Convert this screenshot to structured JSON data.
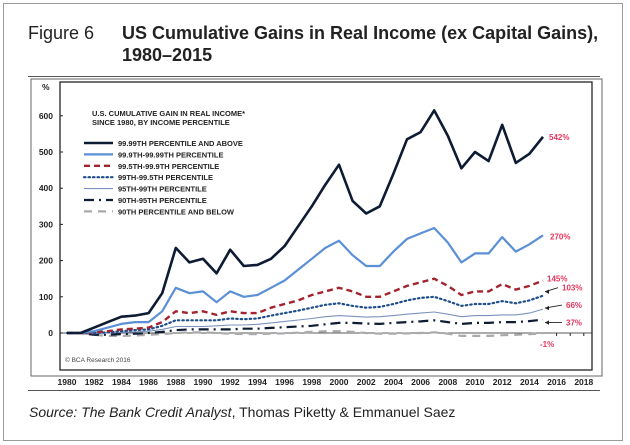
{
  "figure": {
    "label": "Figure 6",
    "title": "US Cumulative Gains in Real Income (ex Capital Gains), 1980–2015",
    "source_italic": "Source: The Bank Credit Analyst",
    "source_rest": ", Thomas Piketty & Emmanuel Saez"
  },
  "chart_data": {
    "type": "line",
    "title": "U.S. CUMULATIVE GAIN IN REAL INCOME* SINCE 1980, BY INCOME PERCENTILE",
    "title_lines": [
      "U.S. CUMULATIVE GAIN IN REAL INCOME*",
      "SINCE 1980, BY INCOME PERCENTILE"
    ],
    "ylabel": "%",
    "xlabel": "",
    "ylim": [
      -40,
      640
    ],
    "xlim": [
      1980,
      2018
    ],
    "yticks": [
      0,
      100,
      200,
      300,
      400,
      500,
      600
    ],
    "xticks": [
      1980,
      1982,
      1984,
      1986,
      1988,
      1990,
      1992,
      1994,
      1996,
      1998,
      2000,
      2002,
      2004,
      2006,
      2008,
      2010,
      2012,
      2014,
      2016,
      2018
    ],
    "grid": false,
    "legend_position": "top-left",
    "copyright": "© BCA Research 2016",
    "x": [
      1980,
      1981,
      1982,
      1983,
      1984,
      1985,
      1986,
      1987,
      1988,
      1989,
      1990,
      1991,
      1992,
      1993,
      1994,
      1995,
      1996,
      1997,
      1998,
      1999,
      2000,
      2001,
      2002,
      2003,
      2004,
      2005,
      2006,
      2007,
      2008,
      2009,
      2010,
      2011,
      2012,
      2013,
      2014,
      2015
    ],
    "series": [
      {
        "name": "99.99TH PERCENTILE AND ABOVE",
        "color": "#0d1b33",
        "style": "solid",
        "end_label": "542%",
        "values": [
          0,
          0,
          15,
          30,
          45,
          48,
          55,
          110,
          235,
          195,
          205,
          165,
          230,
          185,
          188,
          205,
          240,
          295,
          350,
          410,
          465,
          365,
          330,
          350,
          440,
          535,
          555,
          615,
          545,
          455,
          500,
          475,
          575,
          470,
          495,
          542
        ]
      },
      {
        "name": "99.9TH-99.99TH PERCENTILE",
        "color": "#5b8fd6",
        "style": "solid",
        "end_label": "270%",
        "values": [
          0,
          0,
          5,
          15,
          25,
          30,
          30,
          60,
          125,
          110,
          115,
          85,
          115,
          100,
          105,
          125,
          145,
          175,
          205,
          235,
          255,
          215,
          185,
          185,
          225,
          260,
          275,
          290,
          250,
          195,
          220,
          220,
          265,
          225,
          245,
          270
        ]
      },
      {
        "name": "99.5TH-99.9TH PERCENTILE",
        "color": "#a3232e",
        "style": "dash",
        "end_label": "145%",
        "values": [
          0,
          0,
          2,
          5,
          10,
          12,
          15,
          30,
          60,
          55,
          60,
          50,
          60,
          55,
          55,
          70,
          80,
          90,
          105,
          115,
          125,
          115,
          100,
          100,
          115,
          130,
          140,
          150,
          130,
          105,
          115,
          115,
          135,
          120,
          130,
          145
        ]
      },
      {
        "name": "99TH-99.5TH PERCENTILE",
        "color": "#1f4e8c",
        "style": "dot",
        "end_label": "103%",
        "values": [
          0,
          0,
          0,
          2,
          5,
          8,
          10,
          20,
          35,
          35,
          35,
          35,
          40,
          38,
          40,
          48,
          55,
          62,
          70,
          78,
          82,
          75,
          70,
          72,
          80,
          90,
          97,
          100,
          88,
          75,
          80,
          80,
          88,
          82,
          90,
          103
        ]
      },
      {
        "name": "95TH-99TH PERCENTILE",
        "color": "#7c93bb",
        "style": "thin",
        "end_label": "66%",
        "values": [
          0,
          0,
          -2,
          0,
          2,
          3,
          5,
          10,
          18,
          18,
          18,
          20,
          22,
          22,
          24,
          28,
          32,
          36,
          40,
          45,
          48,
          46,
          44,
          45,
          48,
          52,
          55,
          58,
          52,
          45,
          48,
          48,
          50,
          50,
          55,
          66
        ]
      },
      {
        "name": "90TH-95TH PERCENTILE",
        "color": "#0d1b33",
        "style": "dashdot",
        "end_label": "37%",
        "values": [
          0,
          0,
          -5,
          -5,
          -3,
          -2,
          0,
          3,
          8,
          10,
          10,
          10,
          10,
          12,
          12,
          14,
          16,
          18,
          20,
          24,
          28,
          28,
          26,
          25,
          28,
          30,
          32,
          35,
          30,
          25,
          28,
          28,
          30,
          30,
          33,
          37
        ]
      },
      {
        "name": "90TH PERCENTILE AND BELOW",
        "color": "#aaaaaa",
        "style": "longdash",
        "end_label": "-1%",
        "values": [
          0,
          0,
          -5,
          -8,
          -8,
          -7,
          -5,
          -3,
          0,
          2,
          2,
          0,
          -2,
          -3,
          -3,
          -2,
          -1,
          1,
          3,
          5,
          5,
          3,
          0,
          -2,
          -2,
          -1,
          0,
          2,
          -2,
          -8,
          -8,
          -8,
          -6,
          -5,
          -3,
          -1
        ]
      }
    ]
  }
}
